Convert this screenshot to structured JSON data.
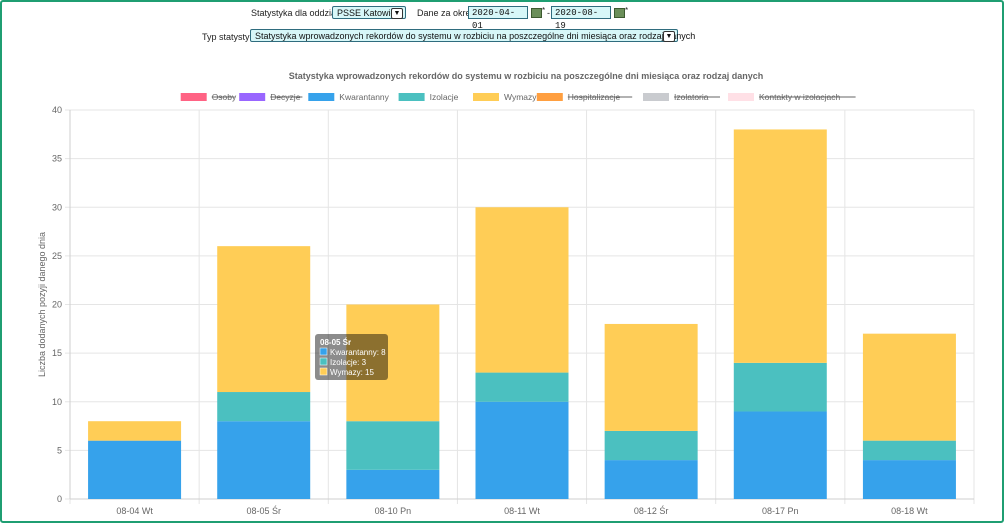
{
  "filters": {
    "branch_label": "Statystyka dla oddziału :",
    "branch_value": "PSSE Katowice",
    "period_label": "Dane za okres :",
    "date_from": "2020-04-01",
    "date_sep": "-",
    "date_to": "2020-08-19",
    "required_mark": "*",
    "type_label": "Typ statystyki:",
    "type_value": "Statystyka wprowadzonych rekordów do systemu w rozbiciu na poszczególne dni miesiąca oraz rodzaj danych"
  },
  "tooltip": {
    "title": "08-05 Śr",
    "lines": [
      "Kwarantanny: 8",
      "Izolacje: 3",
      "Wymazy: 15"
    ]
  },
  "chart_data": {
    "type": "bar",
    "stacked": true,
    "title": "Statystyka wprowadzonych rekordów do systemu w rozbiciu na poszczególne dni miesiąca oraz rodzaj danych",
    "xlabel": "",
    "ylabel": "Liczba dodanych pozyji danego dnia",
    "ylim": [
      0,
      40
    ],
    "yticks": [
      0,
      5,
      10,
      15,
      20,
      25,
      30,
      35,
      40
    ],
    "grid": true,
    "legend_position": "top",
    "categories": [
      "08-04 Wt",
      "08-05 Śr",
      "08-10 Pn",
      "08-11 Wt",
      "08-12 Śr",
      "08-17 Pn",
      "08-18 Wt"
    ],
    "series": [
      {
        "name": "Osoby",
        "color": "#ff6384",
        "hidden": true,
        "values": [
          0,
          0,
          0,
          0,
          0,
          0,
          0
        ]
      },
      {
        "name": "Decyzje",
        "color": "#9966ff",
        "hidden": true,
        "values": [
          0,
          0,
          0,
          0,
          0,
          0,
          0
        ]
      },
      {
        "name": "Kwarantanny",
        "color": "#36a2eb",
        "hidden": false,
        "values": [
          6,
          8,
          3,
          10,
          4,
          9,
          4
        ]
      },
      {
        "name": "Izolacje",
        "color": "#4bc0c0",
        "hidden": false,
        "values": [
          0,
          3,
          5,
          3,
          3,
          5,
          2
        ]
      },
      {
        "name": "Wymazy",
        "color": "#ffcd56",
        "hidden": false,
        "values": [
          2,
          15,
          12,
          17,
          11,
          24,
          11
        ]
      },
      {
        "name": "Hospitalizacje",
        "color": "#ff9f40",
        "hidden": true,
        "values": [
          0,
          0,
          0,
          0,
          0,
          0,
          0
        ]
      },
      {
        "name": "Izolatoria",
        "color": "#c9cbcf",
        "hidden": true,
        "values": [
          0,
          0,
          0,
          0,
          0,
          0,
          0
        ]
      },
      {
        "name": "Kontakty w izolacjach",
        "color": "#ffe0e6",
        "hidden": true,
        "values": [
          0,
          0,
          0,
          0,
          0,
          0,
          0
        ]
      }
    ]
  }
}
